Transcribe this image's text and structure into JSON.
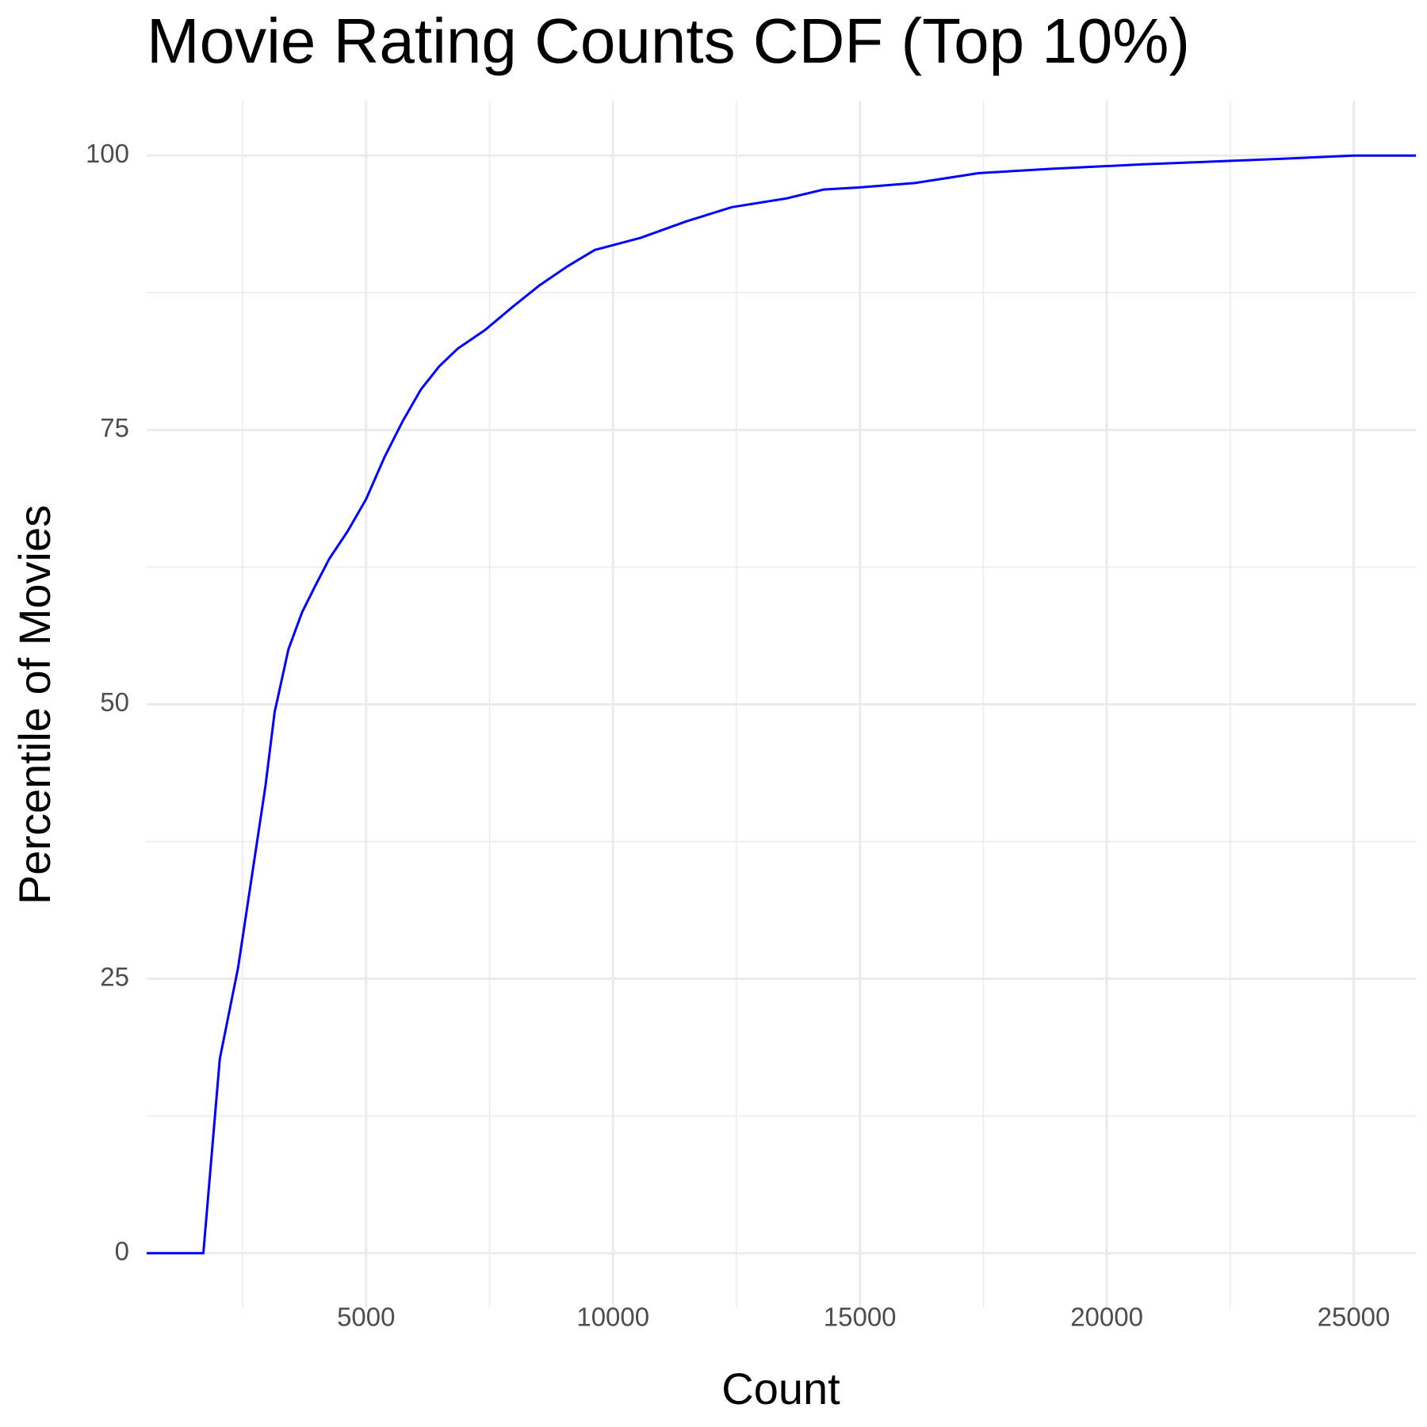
{
  "chart_data": {
    "type": "line",
    "title": "Movie Rating Counts CDF (Top 10%)",
    "x_label": "Count",
    "y_label": "Percentile of Movies",
    "x": [
      556,
      1704,
      2037,
      2407,
      2685,
      2963,
      3148,
      3426,
      3704,
      3982,
      4259,
      4630,
      5000,
      5370,
      5741,
      6111,
      6481,
      6852,
      7407,
      7963,
      8519,
      9074,
      9630,
      10556,
      11481,
      12407,
      13519,
      14259,
      15000,
      16111,
      17407,
      18889,
      20741,
      23519,
      25000,
      26260
    ],
    "series": [
      {
        "name": "CDF",
        "color": "#0000ff",
        "values": [
          0,
          0,
          17.7,
          26,
          34.3,
          42.6,
          49.3,
          55,
          58.4,
          60.9,
          63.3,
          65.8,
          68.7,
          72.5,
          75.8,
          78.7,
          80.8,
          82.4,
          84.1,
          86.2,
          88.2,
          89.9,
          91.4,
          92.5,
          94,
          95.3,
          96.1,
          96.9,
          97.1,
          97.5,
          98.4,
          98.8,
          99.2,
          99.7,
          100,
          100
        ]
      }
    ],
    "xlim": [
      556,
      26260
    ],
    "ylim": [
      -5,
      105
    ],
    "xticks": [
      5000,
      10000,
      15000,
      20000,
      25000
    ],
    "yticks": [
      0,
      25,
      50,
      75,
      100
    ],
    "grid": true
  }
}
